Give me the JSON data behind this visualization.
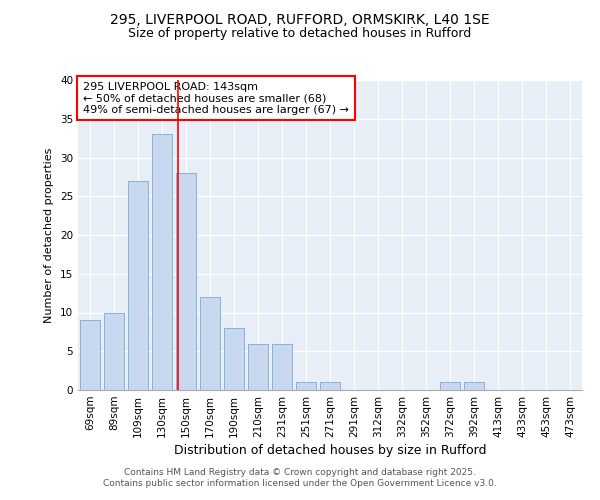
{
  "title1": "295, LIVERPOOL ROAD, RUFFORD, ORMSKIRK, L40 1SE",
  "title2": "Size of property relative to detached houses in Rufford",
  "xlabel": "Distribution of detached houses by size in Rufford",
  "ylabel": "Number of detached properties",
  "categories": [
    "69sqm",
    "89sqm",
    "109sqm",
    "130sqm",
    "150sqm",
    "170sqm",
    "190sqm",
    "210sqm",
    "231sqm",
    "251sqm",
    "271sqm",
    "291sqm",
    "312sqm",
    "332sqm",
    "352sqm",
    "372sqm",
    "392sqm",
    "413sqm",
    "433sqm",
    "453sqm",
    "473sqm"
  ],
  "values": [
    9,
    10,
    27,
    33,
    28,
    12,
    8,
    6,
    6,
    1,
    1,
    0,
    0,
    0,
    0,
    1,
    1,
    0,
    0,
    0,
    0
  ],
  "bar_color": "#c8d8ee",
  "bar_edge_color": "#7aaad0",
  "red_line_x": 3.65,
  "annotation_text": "295 LIVERPOOL ROAD: 143sqm\n← 50% of detached houses are smaller (68)\n49% of semi-detached houses are larger (67) →",
  "annotation_box_color": "white",
  "annotation_box_edge_color": "red",
  "ylim": [
    0,
    40
  ],
  "yticks": [
    0,
    5,
    10,
    15,
    20,
    25,
    30,
    35,
    40
  ],
  "footer_text": "Contains HM Land Registry data © Crown copyright and database right 2025.\nContains public sector information licensed under the Open Government Licence v3.0.",
  "fig_bg_color": "#ffffff",
  "plot_bg_color": "#e8eef8"
}
